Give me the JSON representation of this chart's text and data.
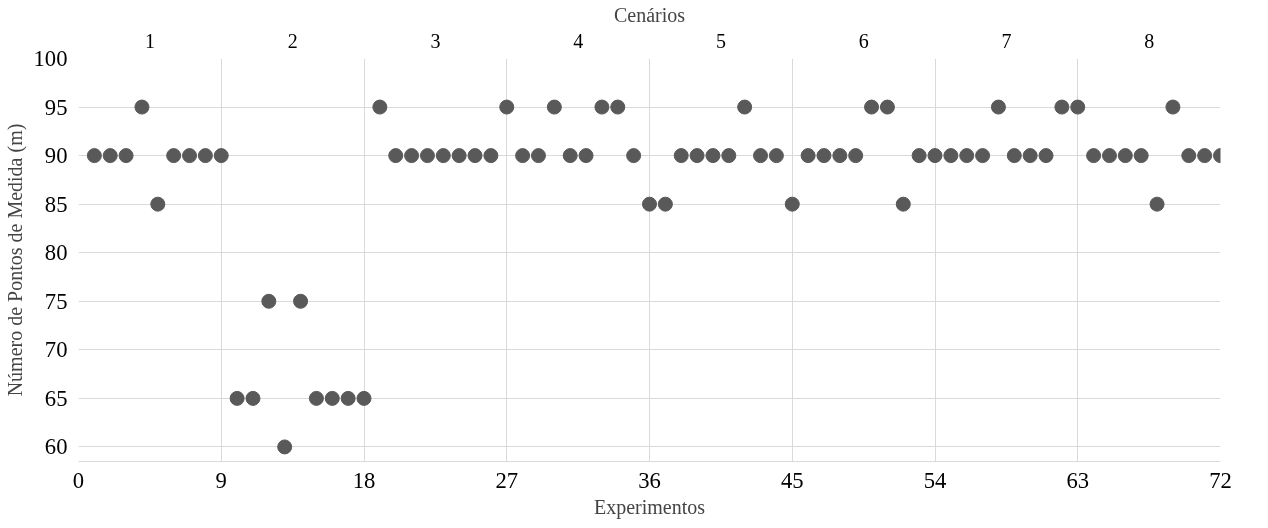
{
  "chart_data": {
    "type": "scatter",
    "xlabel": "Experimentos",
    "ylabel": "Número de Pontos de Medida (m)",
    "x2label": "Cenários",
    "x": [
      1,
      2,
      3,
      4,
      5,
      6,
      7,
      8,
      9,
      10,
      11,
      12,
      13,
      14,
      15,
      16,
      17,
      18,
      19,
      20,
      21,
      22,
      23,
      24,
      25,
      26,
      27,
      28,
      29,
      30,
      31,
      32,
      33,
      34,
      35,
      36,
      37,
      38,
      39,
      40,
      41,
      42,
      43,
      44,
      45,
      46,
      47,
      48,
      49,
      50,
      51,
      52,
      53,
      54,
      55,
      56,
      57,
      58,
      59,
      60,
      61,
      62,
      63,
      64,
      65,
      66,
      67,
      68,
      69,
      70,
      71,
      72
    ],
    "series": [
      {
        "color": "#595959",
        "values": [
          90,
          90,
          90,
          95,
          85,
          90,
          90,
          90,
          90,
          65,
          65,
          75,
          60,
          75,
          65,
          65,
          65,
          65,
          95,
          90,
          90,
          90,
          90,
          90,
          90,
          90,
          95,
          90,
          90,
          95,
          90,
          90,
          95,
          95,
          90,
          85,
          85,
          90,
          90,
          90,
          90,
          95,
          90,
          90,
          85,
          90,
          90,
          90,
          90,
          95,
          95,
          85,
          90,
          90,
          90,
          90,
          90,
          95,
          90,
          90,
          90,
          95,
          95,
          90,
          90,
          90,
          90,
          85,
          95,
          90,
          90,
          90
        ]
      }
    ],
    "xlim": [
      0,
      72
    ],
    "xticks": [
      0,
      9,
      18,
      27,
      36,
      45,
      54,
      63,
      72
    ],
    "x2lim": [
      0.5,
      8.5
    ],
    "x2ticks": [
      1,
      2,
      3,
      4,
      5,
      6,
      7,
      8
    ],
    "ylim": [
      58.5,
      100
    ],
    "yticks": [
      60,
      65,
      70,
      75,
      80,
      85,
      90,
      95,
      100
    ],
    "grid": true,
    "marker": "circle"
  }
}
